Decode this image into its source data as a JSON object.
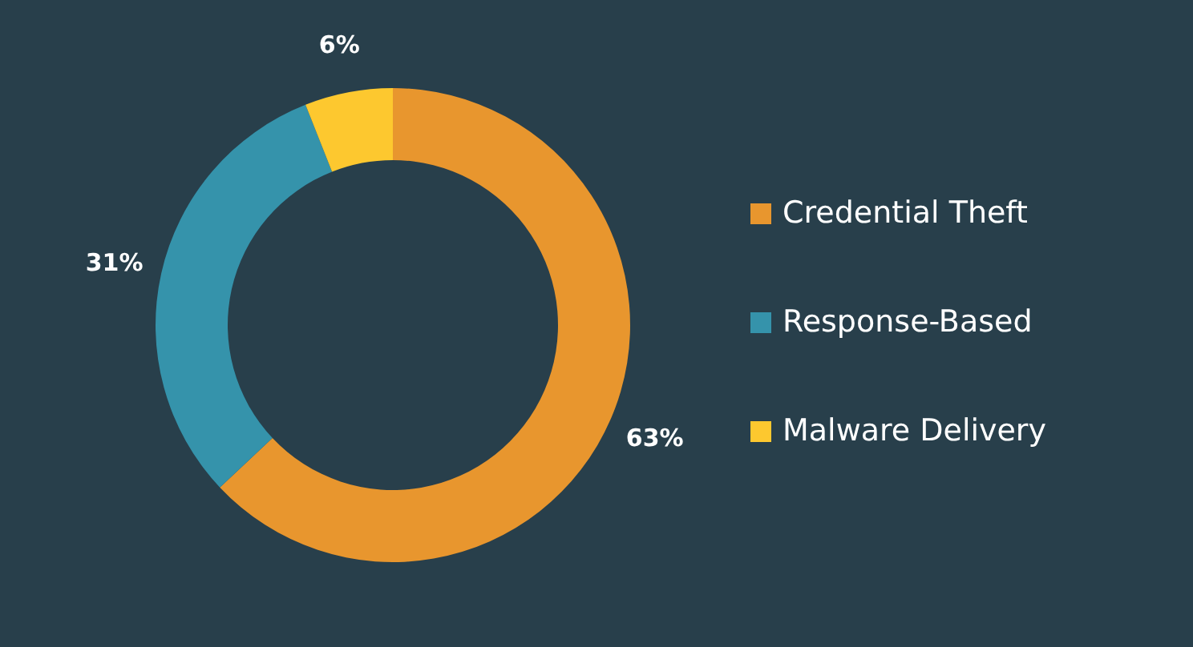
{
  "chart_data": {
    "type": "donut",
    "categories": [
      "Credential Theft",
      "Response-Based",
      "Malware Delivery"
    ],
    "values": [
      63,
      31,
      6
    ],
    "colors": [
      "#e8962e",
      "#3593ab",
      "#fdc82f"
    ],
    "value_labels": [
      "63%",
      "31%",
      "6%"
    ],
    "legend": "right"
  }
}
